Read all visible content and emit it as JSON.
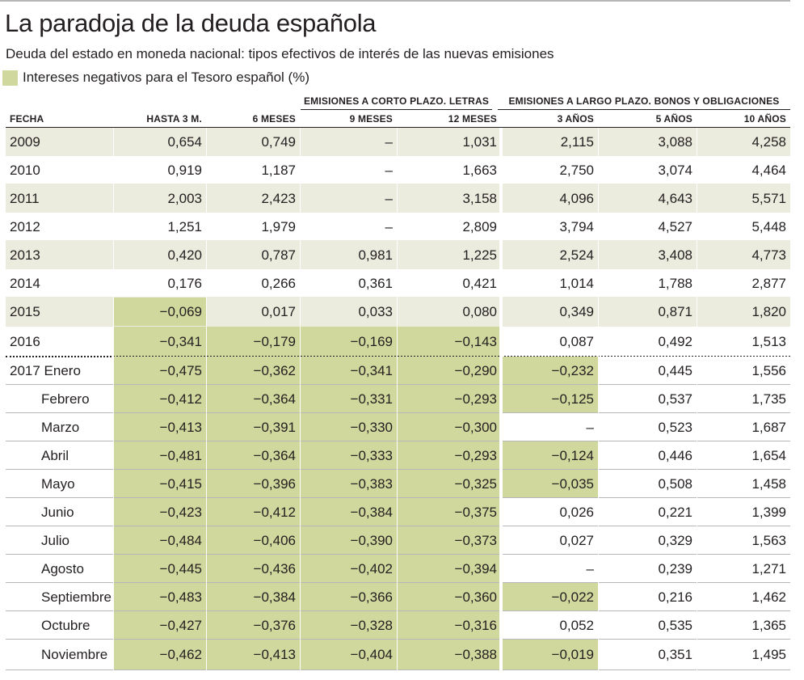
{
  "title": "La paradoja de la deuda española",
  "subtitle": "Deuda del estado en moneda nacional: tipos efectivos de interés de las nuevas emisiones",
  "legend": {
    "label": "Intereses negativos para el Tesoro español (%)",
    "color": "#d1d89d"
  },
  "colors": {
    "band": "#ebebde",
    "negative": "#d1d89d",
    "rule": "#b5b7b9",
    "ink": "#231f20"
  },
  "chart_data": {
    "type": "table",
    "title": "La paradoja de la deuda española",
    "subtitle": "Deuda del estado en moneda nacional: tipos efectivos de interés de las nuevas emisiones",
    "column_groups": [
      {
        "label": "EMISIONES A CORTO PLAZO. LETRAS",
        "columns": [
          "HASTA 3 M.",
          "6 MESES",
          "9 MESES",
          "12 MESES"
        ]
      },
      {
        "label": "EMISIONES A LARGO PLAZO. BONOS Y OBLIGACIONES",
        "columns": [
          "3 AÑOS",
          "5 AÑOS",
          "10 AÑOS"
        ]
      }
    ],
    "columns": [
      "FECHA",
      "HASTA 3 M.",
      "6 MESES",
      "9 MESES",
      "12 MESES",
      "3 AÑOS",
      "5 AÑOS",
      "10 AÑOS"
    ],
    "rows": [
      {
        "label": "2009",
        "values": [
          "0,654",
          "0,749",
          "–",
          "1,031",
          "2,115",
          "3,088",
          "4,258"
        ]
      },
      {
        "label": "2010",
        "values": [
          "0,919",
          "1,187",
          "–",
          "1,663",
          "2,750",
          "3,074",
          "4,464"
        ]
      },
      {
        "label": "2011",
        "values": [
          "2,003",
          "2,423",
          "–",
          "3,158",
          "4,096",
          "4,643",
          "5,571"
        ]
      },
      {
        "label": "2012",
        "values": [
          "1,251",
          "1,979",
          "–",
          "2,809",
          "3,794",
          "4,527",
          "5,448"
        ]
      },
      {
        "label": "2013",
        "values": [
          "0,420",
          "0,787",
          "0,981",
          "1,225",
          "2,524",
          "3,408",
          "4,773"
        ]
      },
      {
        "label": "2014",
        "values": [
          "0,176",
          "0,266",
          "0,361",
          "0,421",
          "1,014",
          "1,788",
          "2,877"
        ]
      },
      {
        "label": "2015",
        "values": [
          "−0,069",
          "0,017",
          "0,033",
          "0,080",
          "0,349",
          "0,871",
          "1,820"
        ]
      },
      {
        "label": "2016",
        "values": [
          "−0,341",
          "−0,179",
          "−0,169",
          "−0,143",
          "0,087",
          "0,492",
          "1,513"
        ]
      },
      {
        "label": "2017 Enero",
        "values": [
          "−0,475",
          "−0,362",
          "−0,341",
          "−0,290",
          "−0,232",
          "0,445",
          "1,556"
        ]
      },
      {
        "label": "Febrero",
        "values": [
          "−0,412",
          "−0,364",
          "−0,331",
          "−0,293",
          "−0,125",
          "0,537",
          "1,735"
        ]
      },
      {
        "label": "Marzo",
        "values": [
          "−0,413",
          "−0,391",
          "−0,330",
          "−0,300",
          "–",
          "0,523",
          "1,687"
        ]
      },
      {
        "label": "Abril",
        "values": [
          "−0,481",
          "−0,364",
          "−0,333",
          "−0,293",
          "−0,124",
          "0,446",
          "1,654"
        ]
      },
      {
        "label": "Mayo",
        "values": [
          "−0,415",
          "−0,396",
          "−0,383",
          "−0,325",
          "−0,035",
          "0,508",
          "1,458"
        ]
      },
      {
        "label": "Junio",
        "values": [
          "−0,423",
          "−0,412",
          "−0,384",
          "−0,375",
          "0,026",
          "0,221",
          "1,399"
        ]
      },
      {
        "label": "Julio",
        "values": [
          "−0,484",
          "−0,406",
          "−0,390",
          "−0,373",
          "0,027",
          "0,329",
          "1,563"
        ]
      },
      {
        "label": "Agosto",
        "values": [
          "−0,445",
          "−0,436",
          "−0,402",
          "−0,394",
          "–",
          "0,239",
          "1,271"
        ]
      },
      {
        "label": "Septiembre",
        "values": [
          "−0,483",
          "−0,384",
          "−0,366",
          "−0,360",
          "−0,022",
          "0,216",
          "1,462"
        ]
      },
      {
        "label": "Octubre",
        "values": [
          "−0,427",
          "−0,376",
          "−0,328",
          "−0,316",
          "0,052",
          "0,535",
          "1,365"
        ]
      },
      {
        "label": "Noviembre",
        "values": [
          "−0,462",
          "−0,413",
          "−0,404",
          "−0,388",
          "−0,019",
          "0,351",
          "1,495"
        ]
      }
    ]
  }
}
